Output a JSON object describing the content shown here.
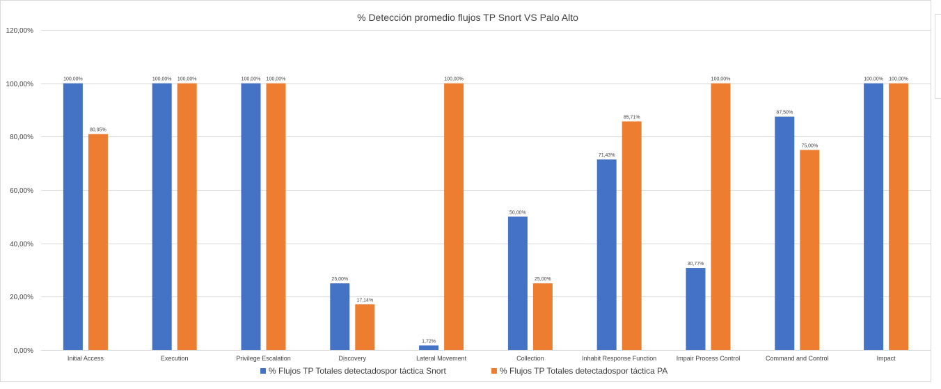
{
  "chart_data": {
    "type": "bar",
    "title": "% Detección promedio flujos TP Snort VS Palo Alto",
    "xlabel": "",
    "ylabel": "",
    "ylim": [
      0,
      120
    ],
    "yticks": [
      0,
      20,
      40,
      60,
      80,
      100,
      120
    ],
    "ytick_labels": [
      "0,00%",
      "20,00%",
      "40,00%",
      "60,00%",
      "80,00%",
      "100,00%",
      "120,00%"
    ],
    "grid": true,
    "legend_position": "bottom",
    "categories": [
      "Initial Access",
      "Execution",
      "Privilege Escalation",
      "Discovery",
      "Lateral Movement",
      "Collection",
      "Inhabit Response Function",
      "Impair Process Control",
      "Command and Control",
      "Impact"
    ],
    "series": [
      {
        "name": "% Flujos TP Totales detectadospor táctica Snort",
        "color": "#4472c4",
        "values": [
          100,
          100,
          100,
          25,
          1.72,
          50,
          71.43,
          30.77,
          87.5,
          100
        ],
        "labels": [
          "100,00%",
          "100,00%",
          "100,00%",
          "25,00%",
          "1,72%",
          "50,00%",
          "71,43%",
          "30,77%",
          "87,50%",
          "100,00%"
        ]
      },
      {
        "name": "% Flujos TP Totales detectadospor táctica PA",
        "color": "#ed7d31",
        "values": [
          80.95,
          100,
          100,
          17.14,
          100,
          25,
          85.71,
          100,
          75,
          100
        ],
        "labels": [
          "80,95%",
          "100,00%",
          "100,00%",
          "17,14%",
          "100,00%",
          "25,00%",
          "85,71%",
          "100,00%",
          "75,00%",
          "100,00%"
        ]
      }
    ]
  }
}
